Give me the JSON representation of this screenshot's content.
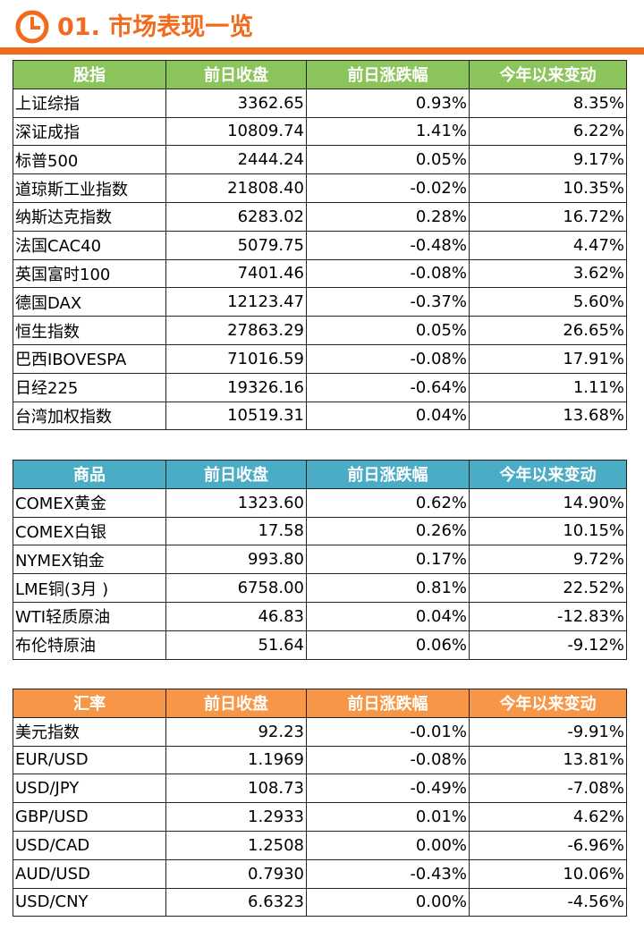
{
  "header": {
    "title": "01. 市场表现一览"
  },
  "tables": [
    {
      "header": [
        "股指",
        "前日收盘",
        "前日涨跌幅",
        "今年以来变动"
      ],
      "rows": [
        [
          "上证综指",
          "3362.65",
          "0.93%",
          "8.35%"
        ],
        [
          "深证成指",
          "10809.74",
          "1.41%",
          "6.22%"
        ],
        [
          "标普500",
          "2444.24",
          "0.05%",
          "9.17%"
        ],
        [
          "道琼斯工业指数",
          "21808.40",
          "-0.02%",
          "10.35%"
        ],
        [
          "纳斯达克指数",
          "6283.02",
          "0.28%",
          "16.72%"
        ],
        [
          "法国CAC40",
          "5079.75",
          "-0.48%",
          "4.47%"
        ],
        [
          "英国富时100",
          "7401.46",
          "-0.08%",
          "3.62%"
        ],
        [
          "德国DAX",
          "12123.47",
          "-0.37%",
          "5.60%"
        ],
        [
          "恒生指数",
          "27863.29",
          "0.05%",
          "26.65%"
        ],
        [
          "巴西IBOVESPA",
          "71016.59",
          "-0.08%",
          "17.91%"
        ],
        [
          "日经225",
          "19326.16",
          "-0.64%",
          "1.11%"
        ],
        [
          "台湾加权指数",
          "10519.31",
          "0.04%",
          "13.68%"
        ]
      ]
    },
    {
      "header": [
        "商品",
        "前日收盘",
        "前日涨跌幅",
        "今年以来变动"
      ],
      "rows": [
        [
          "COMEX黄金",
          "1323.60",
          "0.62%",
          "14.90%"
        ],
        [
          "COMEX白银",
          "17.58",
          "0.26%",
          "10.15%"
        ],
        [
          "NYMEX铂金",
          "993.80",
          "0.17%",
          "9.72%"
        ],
        [
          "LME铜(3月 )",
          "6758.00",
          "0.81%",
          "22.52%"
        ],
        [
          "WTI轻质原油",
          "46.83",
          "0.04%",
          "-12.83%"
        ],
        [
          "布伦特原油",
          "51.64",
          "0.06%",
          "-9.12%"
        ]
      ]
    },
    {
      "header": [
        "汇率",
        "前日收盘",
        "前日涨跌幅",
        "今年以来变动"
      ],
      "rows": [
        [
          "美元指数",
          "92.23",
          "-0.01%",
          "-9.91%"
        ],
        [
          "EUR/USD",
          "1.1969",
          "-0.08%",
          "13.81%"
        ],
        [
          "USD/JPY",
          "108.73",
          "-0.49%",
          "-7.08%"
        ],
        [
          "GBP/USD",
          "1.2933",
          "0.01%",
          "4.62%"
        ],
        [
          "USD/CAD",
          "1.2508",
          "0.00%",
          "-6.96%"
        ],
        [
          "AUD/USD",
          "0.7930",
          "-0.43%",
          "10.06%"
        ],
        [
          "USD/CNY",
          "6.6323",
          "0.00%",
          "-4.56%"
        ]
      ]
    }
  ]
}
